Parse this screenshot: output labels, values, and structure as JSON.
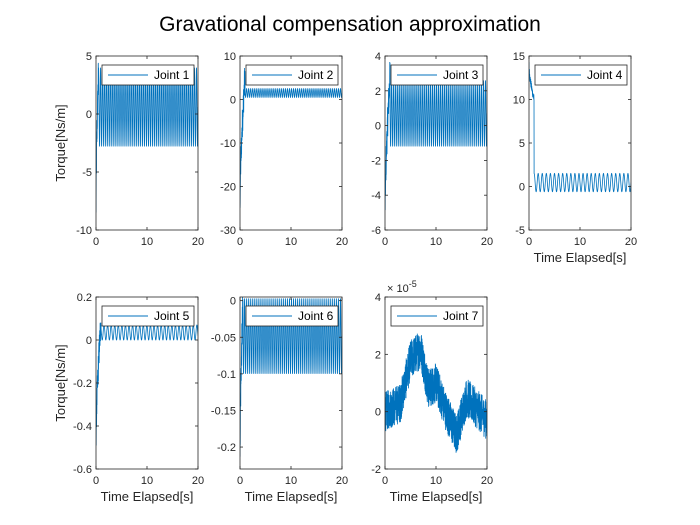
{
  "figure": {
    "title": "Gravational compensation approximation",
    "line_color": "#0072BD"
  },
  "chart_data": [
    {
      "type": "line",
      "legend": "Joint 1",
      "legend_position": "top-right",
      "xlim": [
        0,
        20
      ],
      "ylim": [
        -10,
        5
      ],
      "xticks": [
        0,
        10,
        20
      ],
      "xtick_labels": [
        "0",
        "10",
        "20"
      ],
      "yticks": [
        -10,
        -5,
        0,
        5
      ],
      "ytick_labels": [
        "-10",
        "-5",
        "0",
        "5"
      ],
      "xlabel": "",
      "ylabel": "Torque[Ns/m]",
      "signal": {
        "start": -9,
        "settle_time": 0.5,
        "osc_low": -2.8,
        "osc_high": 4,
        "period": 0.4,
        "peak": 4
      }
    },
    {
      "type": "line",
      "legend": "Joint 2",
      "legend_position": "top-right",
      "xlim": [
        0,
        20
      ],
      "ylim": [
        -30,
        10
      ],
      "xticks": [
        0,
        10,
        20
      ],
      "xtick_labels": [
        "0",
        "10",
        "20"
      ],
      "yticks": [
        -30,
        -20,
        -10,
        0,
        10
      ],
      "ytick_labels": [
        "-30",
        "-20",
        "-10",
        "0",
        "10"
      ],
      "xlabel": "",
      "ylabel": "",
      "signal": {
        "start": -25,
        "settle_time": 1.0,
        "osc_low": 0.5,
        "osc_high": 2.5,
        "period": 0.4,
        "peak": 6
      }
    },
    {
      "type": "line",
      "legend": "Joint 3",
      "legend_position": "top-right",
      "xlim": [
        0,
        20
      ],
      "ylim": [
        -6,
        4
      ],
      "xticks": [
        0,
        10,
        20
      ],
      "xtick_labels": [
        "0",
        "10",
        "20"
      ],
      "yticks": [
        -6,
        -4,
        -2,
        0,
        2,
        4
      ],
      "ytick_labels": [
        "-6",
        "-4",
        "-2",
        "0",
        "2",
        "4"
      ],
      "xlabel": "",
      "ylabel": "",
      "signal": {
        "start": -5.5,
        "settle_time": 1.0,
        "osc_low": -1.2,
        "osc_high": 2.6,
        "period": 0.4,
        "peak": 3
      }
    },
    {
      "type": "line",
      "legend": "Joint 4",
      "legend_position": "top-right",
      "xlim": [
        0,
        20
      ],
      "ylim": [
        -5,
        15
      ],
      "xticks": [
        0,
        10,
        20
      ],
      "xtick_labels": [
        "0",
        "10",
        "20"
      ],
      "yticks": [
        -5,
        0,
        5,
        10,
        15
      ],
      "ytick_labels": [
        "-5",
        "0",
        "5",
        "10",
        "15"
      ],
      "xlabel": "Time Elapsed[s]",
      "ylabel": "",
      "signal": {
        "start": 14,
        "settle_time": 1.0,
        "osc_low": -0.6,
        "osc_high": 1.5,
        "period": 0.8,
        "peak": 10
      }
    },
    {
      "type": "line",
      "legend": "Joint 5",
      "legend_position": "top-right",
      "xlim": [
        0,
        20
      ],
      "ylim": [
        -0.6,
        0.2
      ],
      "xticks": [
        0,
        10,
        20
      ],
      "xtick_labels": [
        "0",
        "10",
        "20"
      ],
      "yticks": [
        -0.6,
        -0.4,
        -0.2,
        0,
        0.2
      ],
      "ytick_labels": [
        "-0.6",
        "-0.4",
        "-0.2",
        "0",
        "0.2"
      ],
      "xlabel": "Time Elapsed[s]",
      "ylabel": "Torque[Ns/m]",
      "signal": {
        "start": -0.5,
        "settle_time": 1.0,
        "osc_low": 0.0,
        "osc_high": 0.07,
        "period": 0.7,
        "peak": 0.1
      }
    },
    {
      "type": "line",
      "legend": "Joint 6",
      "legend_position": "top-right",
      "xlim": [
        0,
        20
      ],
      "ylim": [
        -0.23,
        0.005
      ],
      "xticks": [
        0,
        10,
        20
      ],
      "xtick_labels": [
        "0",
        "10",
        "20"
      ],
      "yticks": [
        -0.2,
        -0.15,
        -0.1,
        -0.05,
        0
      ],
      "ytick_labels": [
        "-0.2",
        "-0.15",
        "-0.1",
        "-0.05",
        "0"
      ],
      "xlabel": "Time Elapsed[s]",
      "ylabel": "",
      "signal": {
        "start": -0.22,
        "settle_time": 0.6,
        "osc_low": -0.1,
        "osc_high": 0.003,
        "period": 0.4,
        "peak": 0.003
      }
    },
    {
      "type": "line",
      "legend": "Joint 7",
      "legend_position": "top-right",
      "xlim": [
        0,
        20
      ],
      "ylim": [
        -2,
        4
      ],
      "xticks": [
        0,
        10,
        20
      ],
      "xtick_labels": [
        "0",
        "10",
        "20"
      ],
      "yticks": [
        -2,
        0,
        2,
        4
      ],
      "ytick_labels": [
        "-2",
        "0",
        "2",
        "4"
      ],
      "xlabel": "Time Elapsed[s]",
      "ylabel": "",
      "y_exponent": "-5",
      "signal": {
        "noise": true,
        "anchors": [
          [
            0,
            0
          ],
          [
            3,
            0.3
          ],
          [
            5,
            1.8
          ],
          [
            7,
            2.2
          ],
          [
            8.5,
            0.8
          ],
          [
            10,
            1.0
          ],
          [
            12,
            0
          ],
          [
            14,
            -0.8
          ],
          [
            16,
            0.5
          ],
          [
            17.5,
            0.2
          ],
          [
            20,
            -0.3
          ]
        ],
        "noise_amp": 0.7
      }
    }
  ]
}
